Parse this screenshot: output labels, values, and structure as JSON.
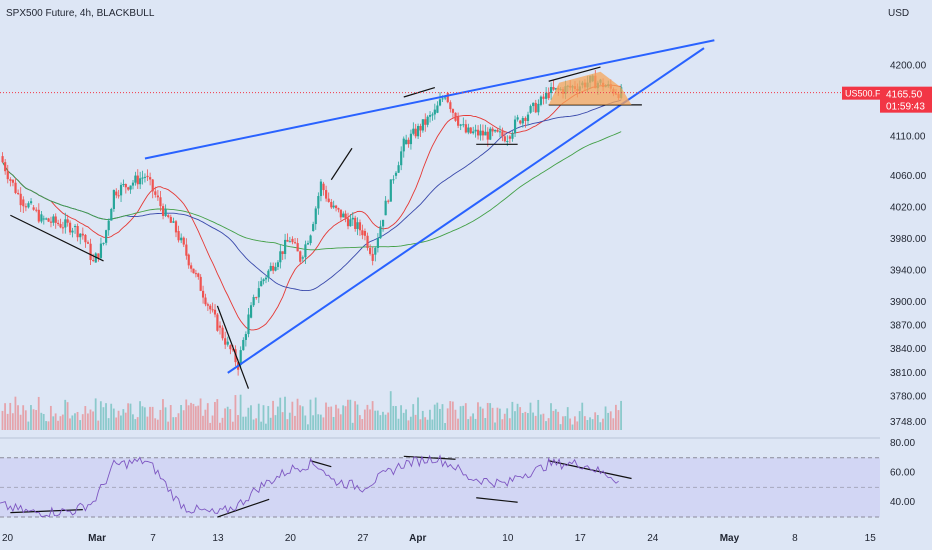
{
  "header": {
    "title": "SPX500 Future, 4h, BLACKBULL",
    "currency": "USD"
  },
  "price_tag": {
    "symbol": "US500.F",
    "price": "4165.50",
    "countdown": "01:59:43",
    "color": "#f23645"
  },
  "colors": {
    "up": "#26a69a",
    "down": "#ef5350",
    "ma_red": "#e53935",
    "ma_blue": "#3949ab",
    "ma_green": "#43a047",
    "trend": "#2962ff",
    "rsi": "#7e57c2",
    "rsi_band": "#c9c9f2",
    "triangle": "#f5a55a"
  },
  "chart_data": [
    {
      "type": "candlestick",
      "symbol": "SPX500 Future",
      "timeframe": "4h",
      "y_ticks": [
        4200,
        4160,
        4110,
        4060,
        4020,
        3980,
        3940,
        3900,
        3870,
        3840,
        3810,
        3780,
        3748
      ],
      "ylim": [
        3735,
        4245
      ],
      "x_ticks": [
        "20",
        "Mar",
        "7",
        "13",
        "20",
        "27",
        "Apr",
        "10",
        "17",
        "24",
        "May",
        "8",
        "15"
      ],
      "xlim": [
        "2023-02-20",
        "2023-05-16"
      ],
      "last_price": 4165.5,
      "closes": [
        [
          "2023-02-20",
          4085
        ],
        [
          "2023-02-21",
          4055
        ],
        [
          "2023-02-22",
          4030
        ],
        [
          "2023-02-23",
          4020
        ],
        [
          "2023-02-24",
          4005
        ],
        [
          "2023-02-27",
          3995
        ],
        [
          "2023-02-28",
          3985
        ],
        [
          "2023-03-01",
          3950
        ],
        [
          "2023-03-02",
          3975
        ],
        [
          "2023-03-03",
          4040
        ],
        [
          "2023-03-06",
          4060
        ],
        [
          "2023-03-07",
          4035
        ],
        [
          "2023-03-08",
          4010
        ],
        [
          "2023-03-09",
          3990
        ],
        [
          "2023-03-10",
          3960
        ],
        [
          "2023-03-13",
          3870
        ],
        [
          "2023-03-14",
          3845
        ],
        [
          "2023-03-15",
          3820
        ],
        [
          "2023-03-16",
          3880
        ],
        [
          "2023-03-17",
          3920
        ],
        [
          "2023-03-20",
          3980
        ],
        [
          "2023-03-21",
          3955
        ],
        [
          "2023-03-22",
          3990
        ],
        [
          "2023-03-23",
          4050
        ],
        [
          "2023-03-24",
          4020
        ],
        [
          "2023-03-27",
          3990
        ],
        [
          "2023-03-28",
          3960
        ],
        [
          "2023-03-29",
          4010
        ],
        [
          "2023-03-30",
          4060
        ],
        [
          "2023-03-31",
          4100
        ],
        [
          "2023-04-03",
          4140
        ],
        [
          "2023-04-04",
          4165
        ],
        [
          "2023-04-05",
          4135
        ],
        [
          "2023-04-06",
          4115
        ],
        [
          "2023-04-10",
          4110
        ],
        [
          "2023-04-11",
          4130
        ],
        [
          "2023-04-12",
          4140
        ],
        [
          "2023-04-13",
          4150
        ],
        [
          "2023-04-14",
          4165
        ],
        [
          "2023-04-17",
          4175
        ],
        [
          "2023-04-18",
          4180
        ],
        [
          "2023-04-19",
          4178
        ],
        [
          "2023-04-20",
          4170
        ],
        [
          "2023-04-21",
          4165
        ]
      ],
      "moving_averages": [
        "red",
        "blue",
        "green"
      ],
      "volume": "bars at bottom of price pane, colored by candle direction"
    },
    {
      "type": "line",
      "name": "RSI",
      "y_ticks": [
        80,
        60,
        40
      ],
      "ylim": [
        28,
        82
      ],
      "band": [
        30,
        70
      ],
      "midline": 50,
      "values": [
        [
          "2023-02-20",
          38
        ],
        [
          "2023-02-23",
          33
        ],
        [
          "2023-02-27",
          34
        ],
        [
          "2023-03-01",
          40
        ],
        [
          "2023-03-02",
          52
        ],
        [
          "2023-03-03",
          65
        ],
        [
          "2023-03-06",
          68
        ],
        [
          "2023-03-07",
          62
        ],
        [
          "2023-03-09",
          42
        ],
        [
          "2023-03-10",
          36
        ],
        [
          "2023-03-13",
          32
        ],
        [
          "2023-03-15",
          38
        ],
        [
          "2023-03-17",
          50
        ],
        [
          "2023-03-20",
          62
        ],
        [
          "2023-03-22",
          66
        ],
        [
          "2023-03-23",
          64
        ],
        [
          "2023-03-24",
          55
        ],
        [
          "2023-03-27",
          50
        ],
        [
          "2023-03-29",
          58
        ],
        [
          "2023-03-31",
          66
        ],
        [
          "2023-04-03",
          70
        ],
        [
          "2023-04-05",
          64
        ],
        [
          "2023-04-06",
          57
        ],
        [
          "2023-04-10",
          52
        ],
        [
          "2023-04-11",
          58
        ],
        [
          "2023-04-13",
          62
        ],
        [
          "2023-04-14",
          66
        ],
        [
          "2023-04-17",
          66
        ],
        [
          "2023-04-18",
          64
        ],
        [
          "2023-04-19",
          60
        ],
        [
          "2023-04-20",
          58
        ],
        [
          "2023-04-21",
          53
        ]
      ]
    }
  ]
}
